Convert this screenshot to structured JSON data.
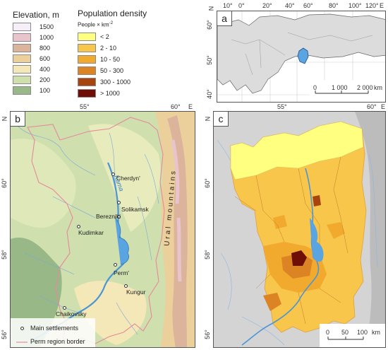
{
  "elevation_legend": {
    "title": "Elevation, m",
    "classes": [
      {
        "label": "1500",
        "color": "#f6eef8"
      },
      {
        "label": "1000",
        "color": "#e8c4cc"
      },
      {
        "label": "800",
        "color": "#dcb49c"
      },
      {
        "label": "600",
        "color": "#ecd09c"
      },
      {
        "label": "400",
        "color": "#f4e8b8"
      },
      {
        "label": "200",
        "color": "#cfdfae"
      },
      {
        "label": "100",
        "color": "#98b888"
      }
    ]
  },
  "density_legend": {
    "title": "Population density",
    "unit": "People × km",
    "unit_sup": "-2",
    "classes": [
      {
        "label": "< 2",
        "color": "#ffff80"
      },
      {
        "label": "2 - 10",
        "color": "#f7c64a"
      },
      {
        "label": "10 - 50",
        "color": "#f2aa2e"
      },
      {
        "label": "50 - 300",
        "color": "#dc8424"
      },
      {
        "label": "300 - 1000",
        "color": "#a84410"
      },
      {
        "label": "> 1000",
        "color": "#6e0e06"
      }
    ]
  },
  "panel_a": {
    "label": "a",
    "lon_ticks": [
      "10°",
      "0°",
      "20°",
      "40°",
      "60°",
      "80°",
      "100°",
      "120°",
      "E"
    ],
    "lat_ticks": [
      "60°",
      "50°",
      "40°"
    ],
    "lat_suffix": "N",
    "scale": {
      "ticks": [
        "0",
        "1 000",
        "2 000"
      ],
      "unit": "km"
    }
  },
  "panel_b": {
    "label": "b",
    "lon_ticks": [
      "55°",
      "60°",
      "E"
    ],
    "lat_ticks": [
      "60°",
      "58°",
      "56°"
    ],
    "lat_suffix": "N",
    "river": "Kama",
    "mountains": "Ural mountains",
    "cities": [
      "Cherdyn'",
      "Solikamsk",
      "Berezniki",
      "Kudimkar",
      "Perm'",
      "Kungur",
      "Chaikovsky"
    ],
    "legend": {
      "settlements": "Main settlements",
      "border": "Perm region border"
    }
  },
  "panel_c": {
    "label": "c",
    "lon_ticks": [
      "55°",
      "60°",
      "E"
    ],
    "lat_ticks": [
      "60°",
      "58°",
      "56°"
    ],
    "lat_suffix": "N",
    "scale": {
      "ticks": [
        "0",
        "50",
        "100"
      ],
      "unit": "km"
    }
  }
}
